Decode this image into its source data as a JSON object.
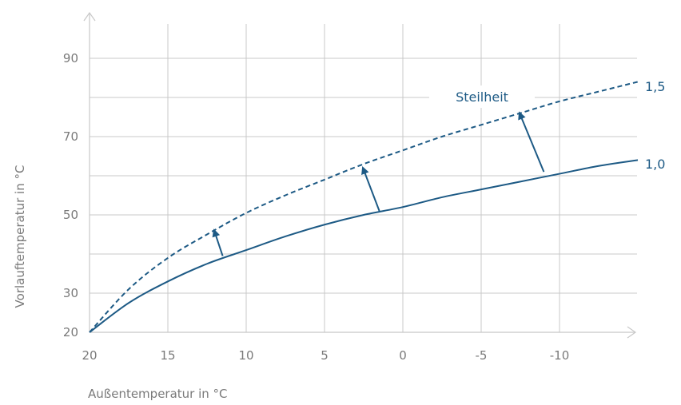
{
  "chart_data": {
    "type": "line",
    "title": "",
    "xlabel": "Außentemperatur in °C",
    "ylabel": "Vorlauftemperatur in °C",
    "xlim": [
      20,
      -15
    ],
    "ylim": [
      20,
      100
    ],
    "x_ticks": [
      20,
      15,
      10,
      5,
      0,
      -5,
      -10
    ],
    "x_tick_labels": [
      "20",
      "15",
      "10",
      "5",
      "0",
      "-5",
      "-10"
    ],
    "y_ticks": [
      20,
      30,
      50,
      70,
      90
    ],
    "y_tick_labels": [
      "20",
      "30",
      "50",
      "70",
      "90"
    ],
    "grid": true,
    "color": "#1d5a85",
    "series": [
      {
        "name": "1,0",
        "style": "solid",
        "x": [
          20,
          17.5,
          15,
          12.5,
          10,
          7.5,
          5,
          2.5,
          0,
          -2.5,
          -5,
          -7.5,
          -10,
          -12.5,
          -15
        ],
        "y": [
          20,
          27.5,
          33,
          37.5,
          41,
          44.5,
          47.5,
          50,
          52,
          54.5,
          56.5,
          58.5,
          60.5,
          62.5,
          64
        ]
      },
      {
        "name": "1,5",
        "style": "dashed",
        "x": [
          20,
          17.5,
          15,
          12.5,
          10,
          7.5,
          5,
          2.5,
          0,
          -2.5,
          -5,
          -7.5,
          -10,
          -12.5,
          -15
        ],
        "y": [
          20,
          31,
          39,
          45,
          50.5,
          55,
          59,
          63,
          66.5,
          70,
          73,
          76,
          79,
          81.5,
          84
        ]
      }
    ],
    "annotation": "Steilheit",
    "arrows": [
      {
        "x_from": 11.5,
        "y_from": 39.5,
        "x_to": 12,
        "y_to": 45.5
      },
      {
        "x_from": 1.5,
        "y_from": 51,
        "x_to": 2.5,
        "y_to": 61.5
      },
      {
        "x_from": -9,
        "y_from": 61,
        "x_to": -7.5,
        "y_to": 75.5
      }
    ]
  }
}
